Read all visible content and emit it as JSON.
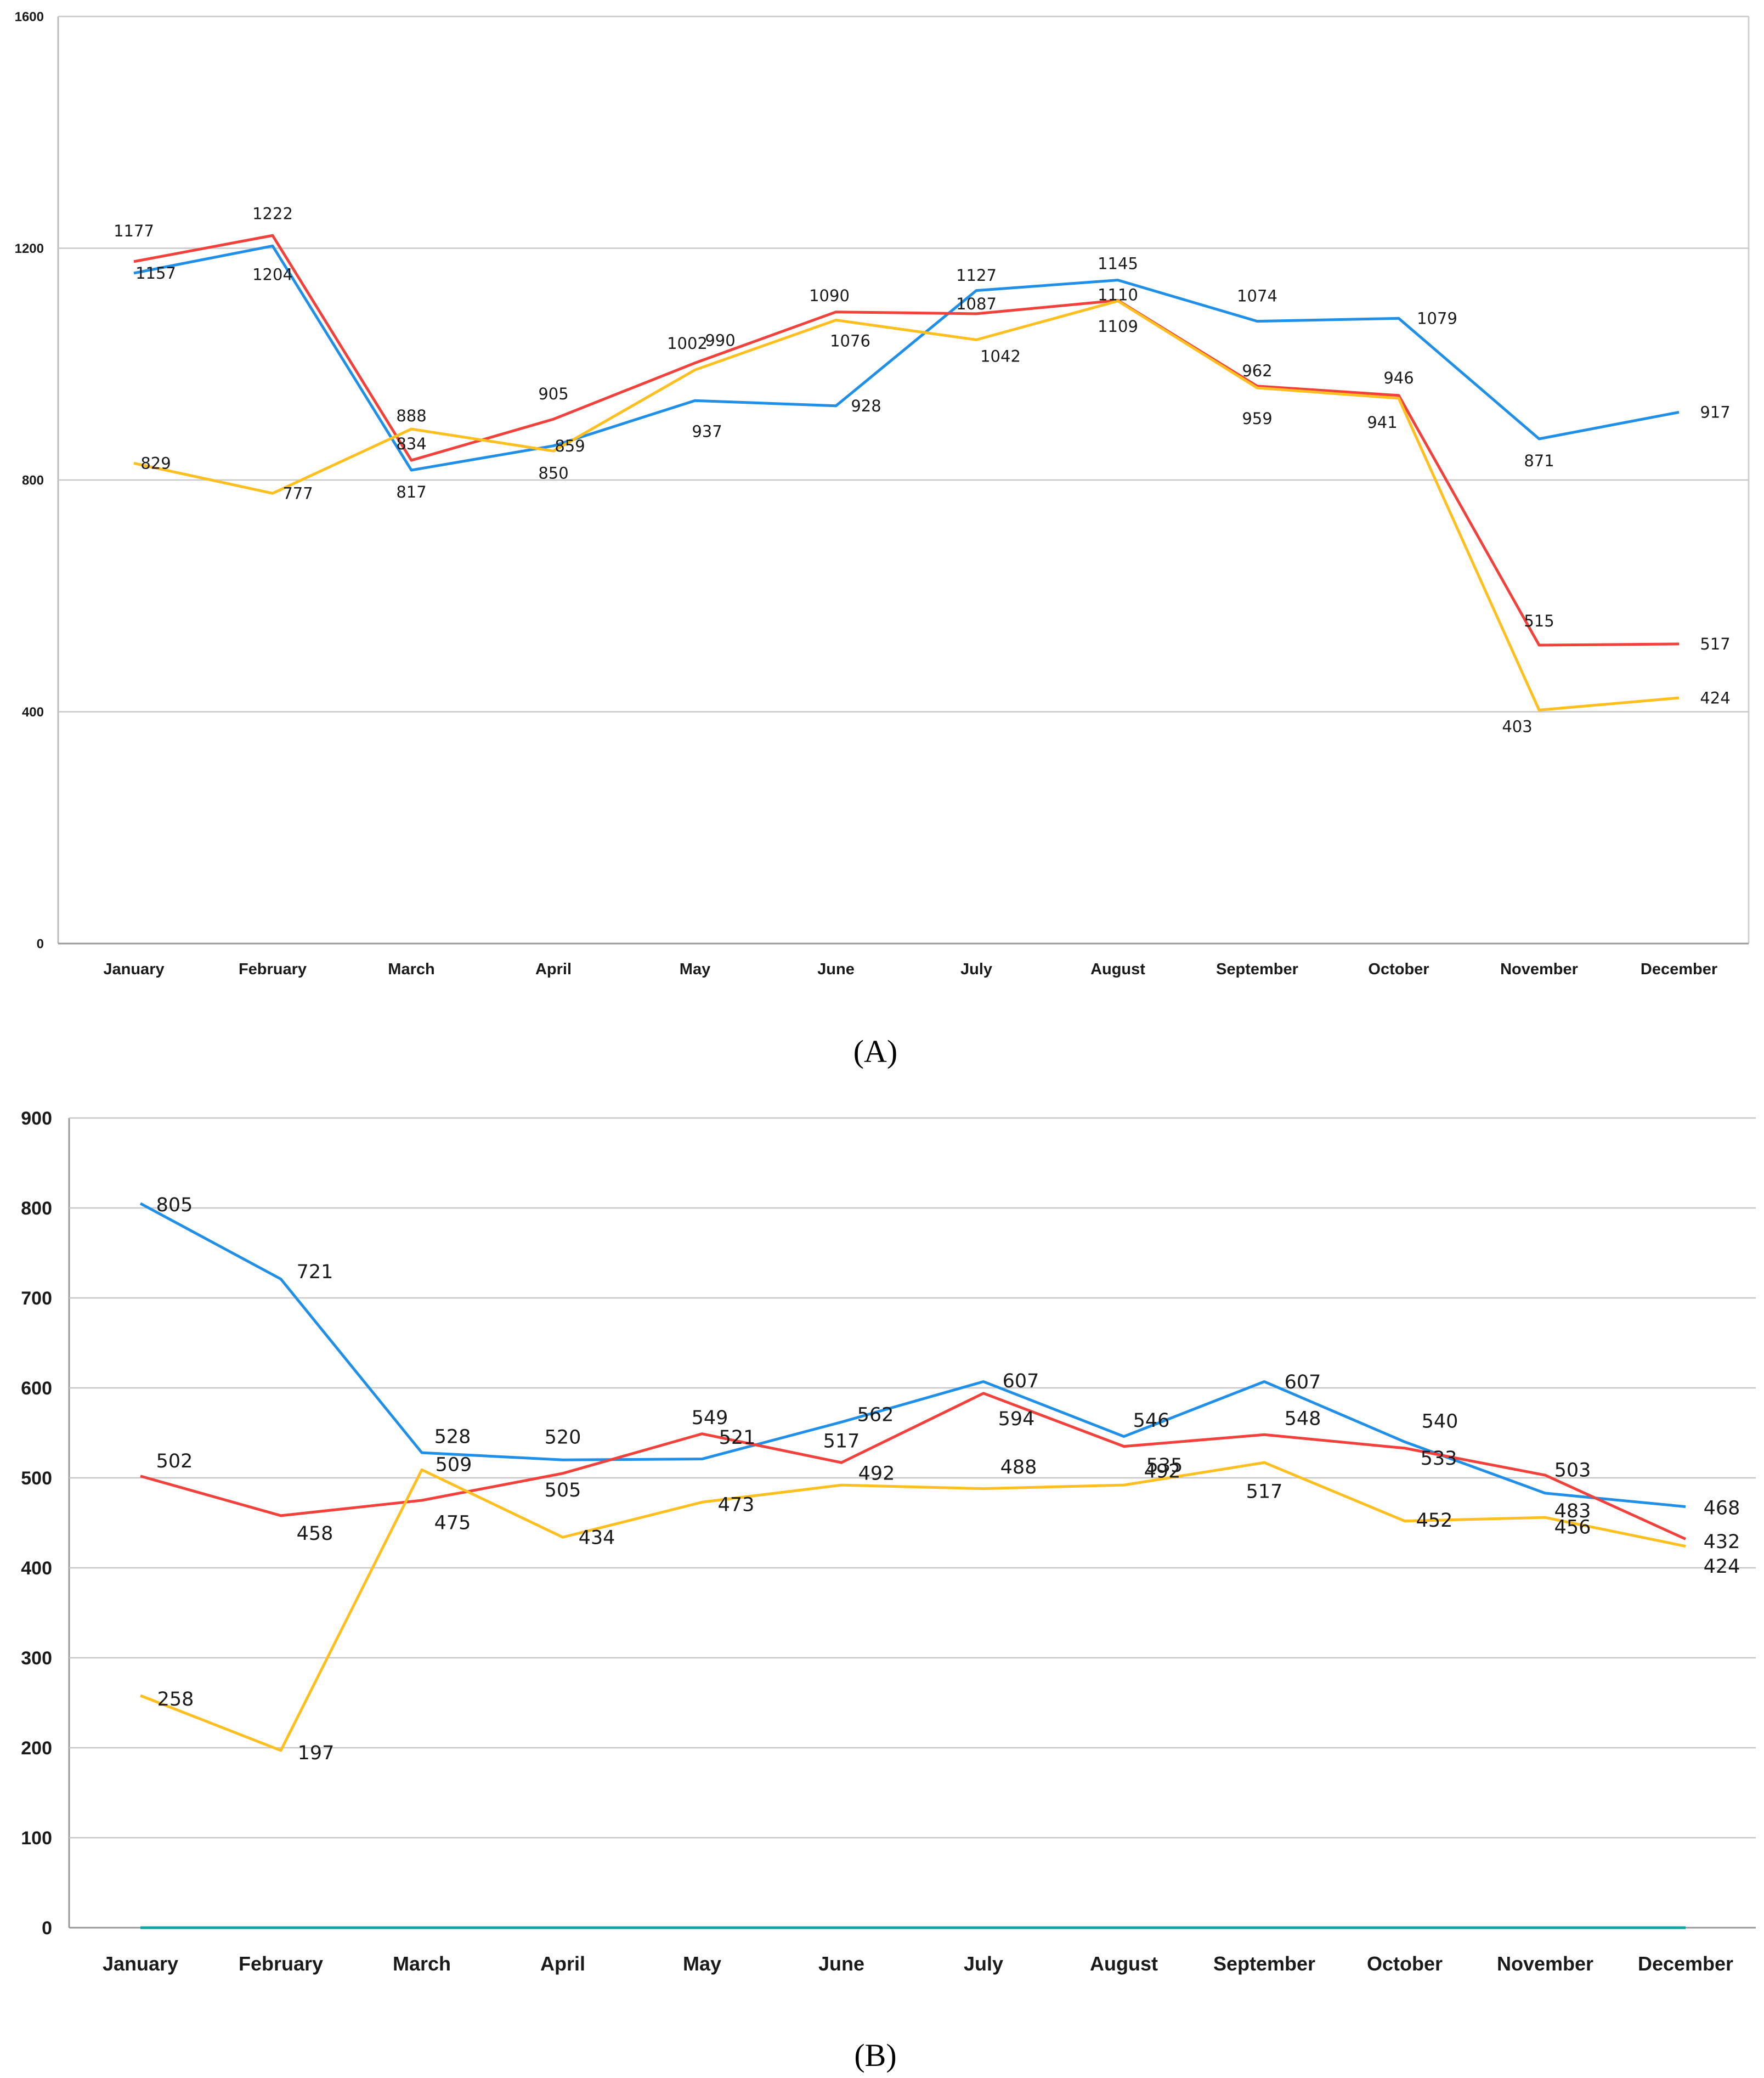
{
  "chart_data": [
    {
      "type": "line",
      "panel_label": "A",
      "categories": [
        "January",
        "February",
        "March",
        "April",
        "May",
        "June",
        "July",
        "August",
        "September",
        "October",
        "November",
        "December"
      ],
      "ylim": [
        0,
        1600
      ],
      "yticks": [
        0,
        400,
        800,
        1200,
        1600
      ],
      "grid": true,
      "series": [
        {
          "name": "blue",
          "color": "#1f8fe8",
          "values": [
            1157,
            1204,
            817,
            859,
            937,
            928,
            1127,
            1145,
            1074,
            1079,
            871,
            917
          ]
        },
        {
          "name": "red",
          "color": "#f2413b",
          "values": [
            1177,
            1222,
            834,
            905,
            1002,
            1090,
            1087,
            1110,
            962,
            946,
            515,
            517
          ]
        },
        {
          "name": "yellow",
          "color": "#ffbf1f",
          "values": [
            829,
            777,
            888,
            850,
            990,
            1076,
            1042,
            1109,
            959,
            941,
            403,
            424
          ]
        }
      ]
    },
    {
      "type": "line",
      "panel_label": "B",
      "categories": [
        "January",
        "February",
        "March",
        "April",
        "May",
        "June",
        "July",
        "August",
        "September",
        "October",
        "November",
        "December"
      ],
      "ylim": [
        0,
        900
      ],
      "yticks": [
        0,
        100,
        200,
        300,
        400,
        500,
        600,
        700,
        800,
        900
      ],
      "grid": true,
      "series": [
        {
          "name": "blue",
          "color": "#1f8fe8",
          "values": [
            805,
            721,
            528,
            520,
            521,
            562,
            607,
            546,
            607,
            540,
            483,
            468
          ]
        },
        {
          "name": "red",
          "color": "#f2413b",
          "values": [
            502,
            458,
            475,
            505,
            549,
            517,
            594,
            535,
            548,
            533,
            503,
            432
          ]
        },
        {
          "name": "yellow",
          "color": "#ffbf1f",
          "values": [
            258,
            197,
            509,
            434,
            473,
            492,
            488,
            492,
            517,
            452,
            456,
            424
          ]
        },
        {
          "name": "teal",
          "color": "#14a3a3",
          "values": [
            0,
            0,
            0,
            0,
            0,
            0,
            0,
            0,
            0,
            0,
            0,
            0
          ],
          "show_labels": false
        }
      ]
    }
  ],
  "panels": {
    "a_label": "(A)",
    "b_label": "(B)"
  }
}
